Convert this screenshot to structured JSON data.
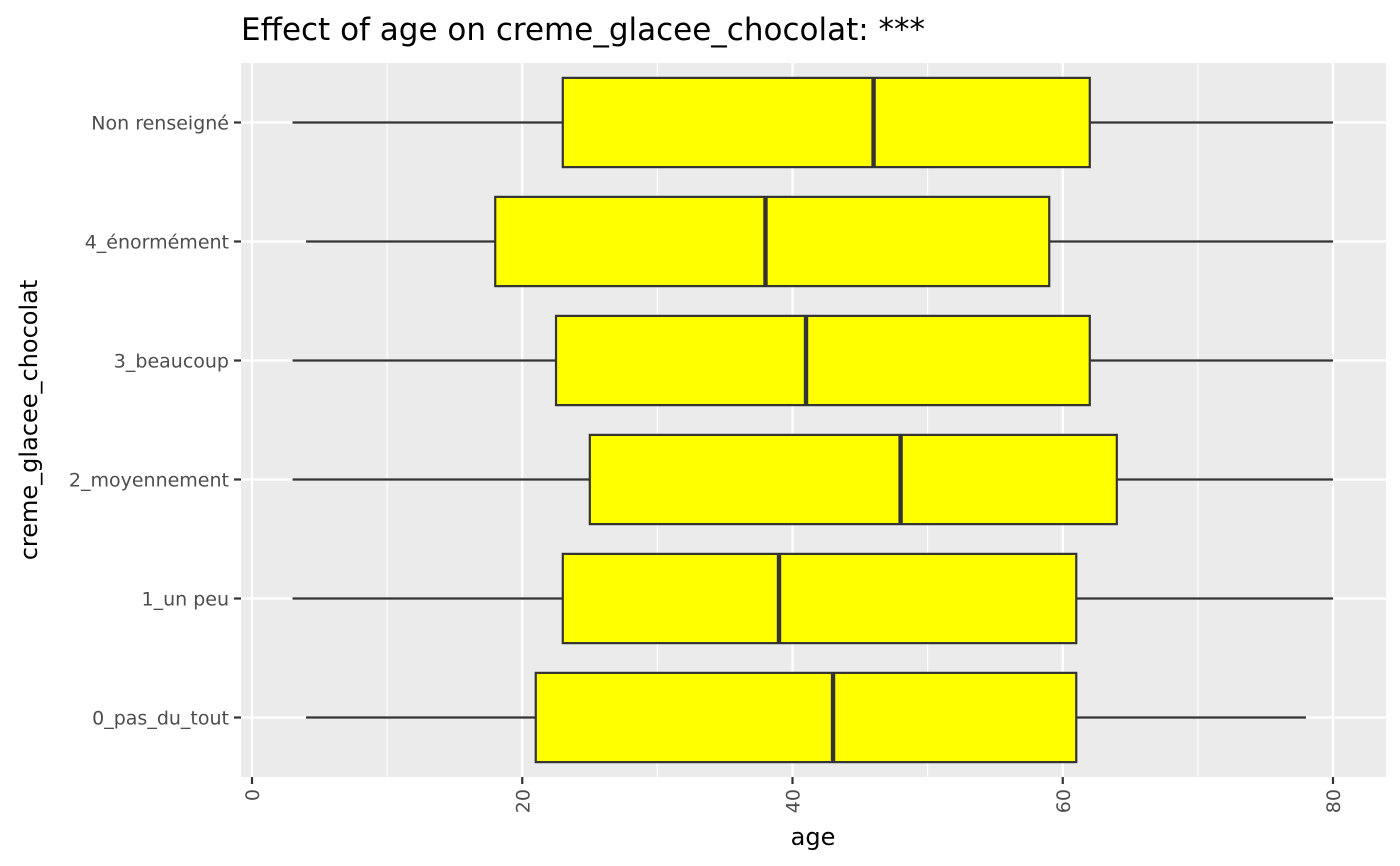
{
  "chart_data": {
    "type": "boxplot",
    "title": "Effect of age on creme_glacee_chocolat: ***",
    "xlabel": "age",
    "ylabel": "creme_glacee_chocolat",
    "xlim": [
      -1,
      81
    ],
    "x_ticks": [
      0,
      20,
      40,
      60,
      80
    ],
    "x_minor_ticks": [
      10,
      30,
      50,
      70
    ],
    "grid": true,
    "fill_color": "#ffff00",
    "stroke_color": "#333333",
    "panel_background": "#ebebeb",
    "grid_color": "#ffffff",
    "categories": [
      "0_pas_du_tout",
      "1_un peu",
      "2_moyennement",
      "3_beaucoup",
      "4_énormément",
      "Non renseigné"
    ],
    "boxes": [
      {
        "category": "0_pas_du_tout",
        "min": 4,
        "q1": 21,
        "median": 43,
        "q3": 61,
        "max": 78
      },
      {
        "category": "1_un peu",
        "min": 3,
        "q1": 23,
        "median": 39,
        "q3": 61,
        "max": 80
      },
      {
        "category": "2_moyennement",
        "min": 3,
        "q1": 25,
        "median": 48,
        "q3": 64,
        "max": 80
      },
      {
        "category": "3_beaucoup",
        "min": 3,
        "q1": 22.5,
        "median": 41,
        "q3": 62,
        "max": 80
      },
      {
        "category": "4_énormément",
        "min": 4,
        "q1": 18,
        "median": 38,
        "q3": 59,
        "max": 80
      },
      {
        "category": "Non renseigné",
        "min": 3,
        "q1": 23,
        "median": 46,
        "q3": 62,
        "max": 80
      }
    ]
  }
}
